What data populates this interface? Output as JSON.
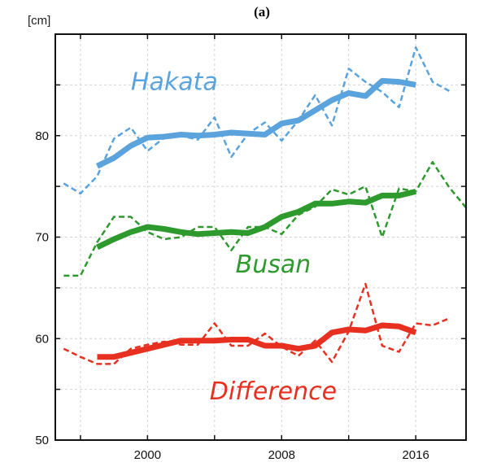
{
  "chart_data": {
    "type": "line",
    "panel_label": "(a)",
    "y_unit": "[cm]",
    "xlim": [
      1994.5,
      2019
    ],
    "ylim": [
      50,
      90
    ],
    "x_ticks": [
      2000,
      2008,
      2016
    ],
    "y_ticks": [
      50,
      60,
      70,
      80
    ],
    "grid": true,
    "series": [
      {
        "name": "Hakata",
        "color": "#5ba3dc",
        "annual": [
          [
            1995,
            75.3
          ],
          [
            1996,
            74.3
          ],
          [
            1997,
            76.0
          ],
          [
            1998,
            79.7
          ],
          [
            1999,
            80.8
          ],
          [
            2000,
            78.5
          ],
          [
            2001,
            79.8
          ],
          [
            2002,
            80.0
          ],
          [
            2003,
            79.6
          ],
          [
            2004,
            81.8
          ],
          [
            2005,
            77.9
          ],
          [
            2006,
            80.2
          ],
          [
            2007,
            81.3
          ],
          [
            2008,
            79.5
          ],
          [
            2009,
            81.5
          ],
          [
            2010,
            84.0
          ],
          [
            2011,
            81.0
          ],
          [
            2012,
            86.6
          ],
          [
            2013,
            85.3
          ],
          [
            2014,
            84.3
          ],
          [
            2015,
            82.8
          ],
          [
            2016,
            88.7
          ],
          [
            2017,
            85.3
          ],
          [
            2018,
            84.4
          ]
        ],
        "smoothed": [
          [
            1997,
            77.0
          ],
          [
            1998,
            77.8
          ],
          [
            1999,
            79.0
          ],
          [
            2000,
            79.8
          ],
          [
            2001,
            79.9
          ],
          [
            2002,
            80.1
          ],
          [
            2003,
            80.0
          ],
          [
            2004,
            80.1
          ],
          [
            2005,
            80.3
          ],
          [
            2006,
            80.2
          ],
          [
            2007,
            80.1
          ],
          [
            2008,
            81.2
          ],
          [
            2009,
            81.5
          ],
          [
            2010,
            82.5
          ],
          [
            2011,
            83.5
          ],
          [
            2012,
            84.2
          ],
          [
            2013,
            83.9
          ],
          [
            2014,
            85.4
          ],
          [
            2015,
            85.3
          ],
          [
            2016,
            85.0
          ]
        ]
      },
      {
        "name": "Busan",
        "color": "#2e9a2e",
        "annual": [
          [
            1995,
            66.2
          ],
          [
            1996,
            66.2
          ],
          [
            1997,
            69.5
          ],
          [
            1998,
            72.0
          ],
          [
            1999,
            72.0
          ],
          [
            2000,
            70.5
          ],
          [
            2001,
            69.8
          ],
          [
            2002,
            70.0
          ],
          [
            2003,
            71.0
          ],
          [
            2004,
            71.0
          ],
          [
            2005,
            68.7
          ],
          [
            2006,
            71.0
          ],
          [
            2007,
            71.0
          ],
          [
            2008,
            70.3
          ],
          [
            2009,
            72.2
          ],
          [
            2010,
            73.0
          ],
          [
            2011,
            74.7
          ],
          [
            2012,
            74.2
          ],
          [
            2013,
            75.0
          ],
          [
            2014,
            70.0
          ],
          [
            2015,
            74.8
          ],
          [
            2016,
            74.5
          ],
          [
            2017,
            77.4
          ],
          [
            2018,
            74.9
          ],
          [
            2019,
            72.9
          ]
        ],
        "smoothed": [
          [
            1997,
            69.0
          ],
          [
            1998,
            69.8
          ],
          [
            1999,
            70.5
          ],
          [
            2000,
            71.0
          ],
          [
            2001,
            70.8
          ],
          [
            2002,
            70.5
          ],
          [
            2003,
            70.3
          ],
          [
            2004,
            70.4
          ],
          [
            2005,
            70.5
          ],
          [
            2006,
            70.4
          ],
          [
            2007,
            71.0
          ],
          [
            2008,
            72.0
          ],
          [
            2009,
            72.5
          ],
          [
            2010,
            73.3
          ],
          [
            2011,
            73.3
          ],
          [
            2012,
            73.5
          ],
          [
            2013,
            73.4
          ],
          [
            2014,
            74.1
          ],
          [
            2015,
            74.1
          ],
          [
            2016,
            74.5
          ]
        ]
      },
      {
        "name": "Difference",
        "color": "#e83020",
        "annual": [
          [
            1995,
            59.0
          ],
          [
            1996,
            58.2
          ],
          [
            1997,
            57.5
          ],
          [
            1998,
            57.5
          ],
          [
            1999,
            59.0
          ],
          [
            2000,
            59.4
          ],
          [
            2001,
            59.7
          ],
          [
            2002,
            59.4
          ],
          [
            2003,
            59.4
          ],
          [
            2004,
            61.5
          ],
          [
            2005,
            59.3
          ],
          [
            2006,
            59.3
          ],
          [
            2007,
            60.5
          ],
          [
            2008,
            59.2
          ],
          [
            2009,
            58.3
          ],
          [
            2010,
            59.8
          ],
          [
            2011,
            57.7
          ],
          [
            2012,
            60.7
          ],
          [
            2013,
            65.4
          ],
          [
            2014,
            59.3
          ],
          [
            2015,
            58.7
          ],
          [
            2016,
            61.5
          ],
          [
            2017,
            61.3
          ],
          [
            2018,
            62.0
          ]
        ],
        "smoothed": [
          [
            1997,
            58.2
          ],
          [
            1998,
            58.2
          ],
          [
            1999,
            58.6
          ],
          [
            2000,
            59.0
          ],
          [
            2001,
            59.4
          ],
          [
            2002,
            59.8
          ],
          [
            2003,
            59.8
          ],
          [
            2004,
            59.8
          ],
          [
            2005,
            59.9
          ],
          [
            2006,
            59.9
          ],
          [
            2007,
            59.3
          ],
          [
            2008,
            59.3
          ],
          [
            2009,
            59.0
          ],
          [
            2010,
            59.3
          ],
          [
            2011,
            60.6
          ],
          [
            2012,
            60.9
          ],
          [
            2013,
            60.8
          ],
          [
            2014,
            61.3
          ],
          [
            2015,
            61.2
          ],
          [
            2016,
            60.6
          ]
        ]
      }
    ]
  }
}
